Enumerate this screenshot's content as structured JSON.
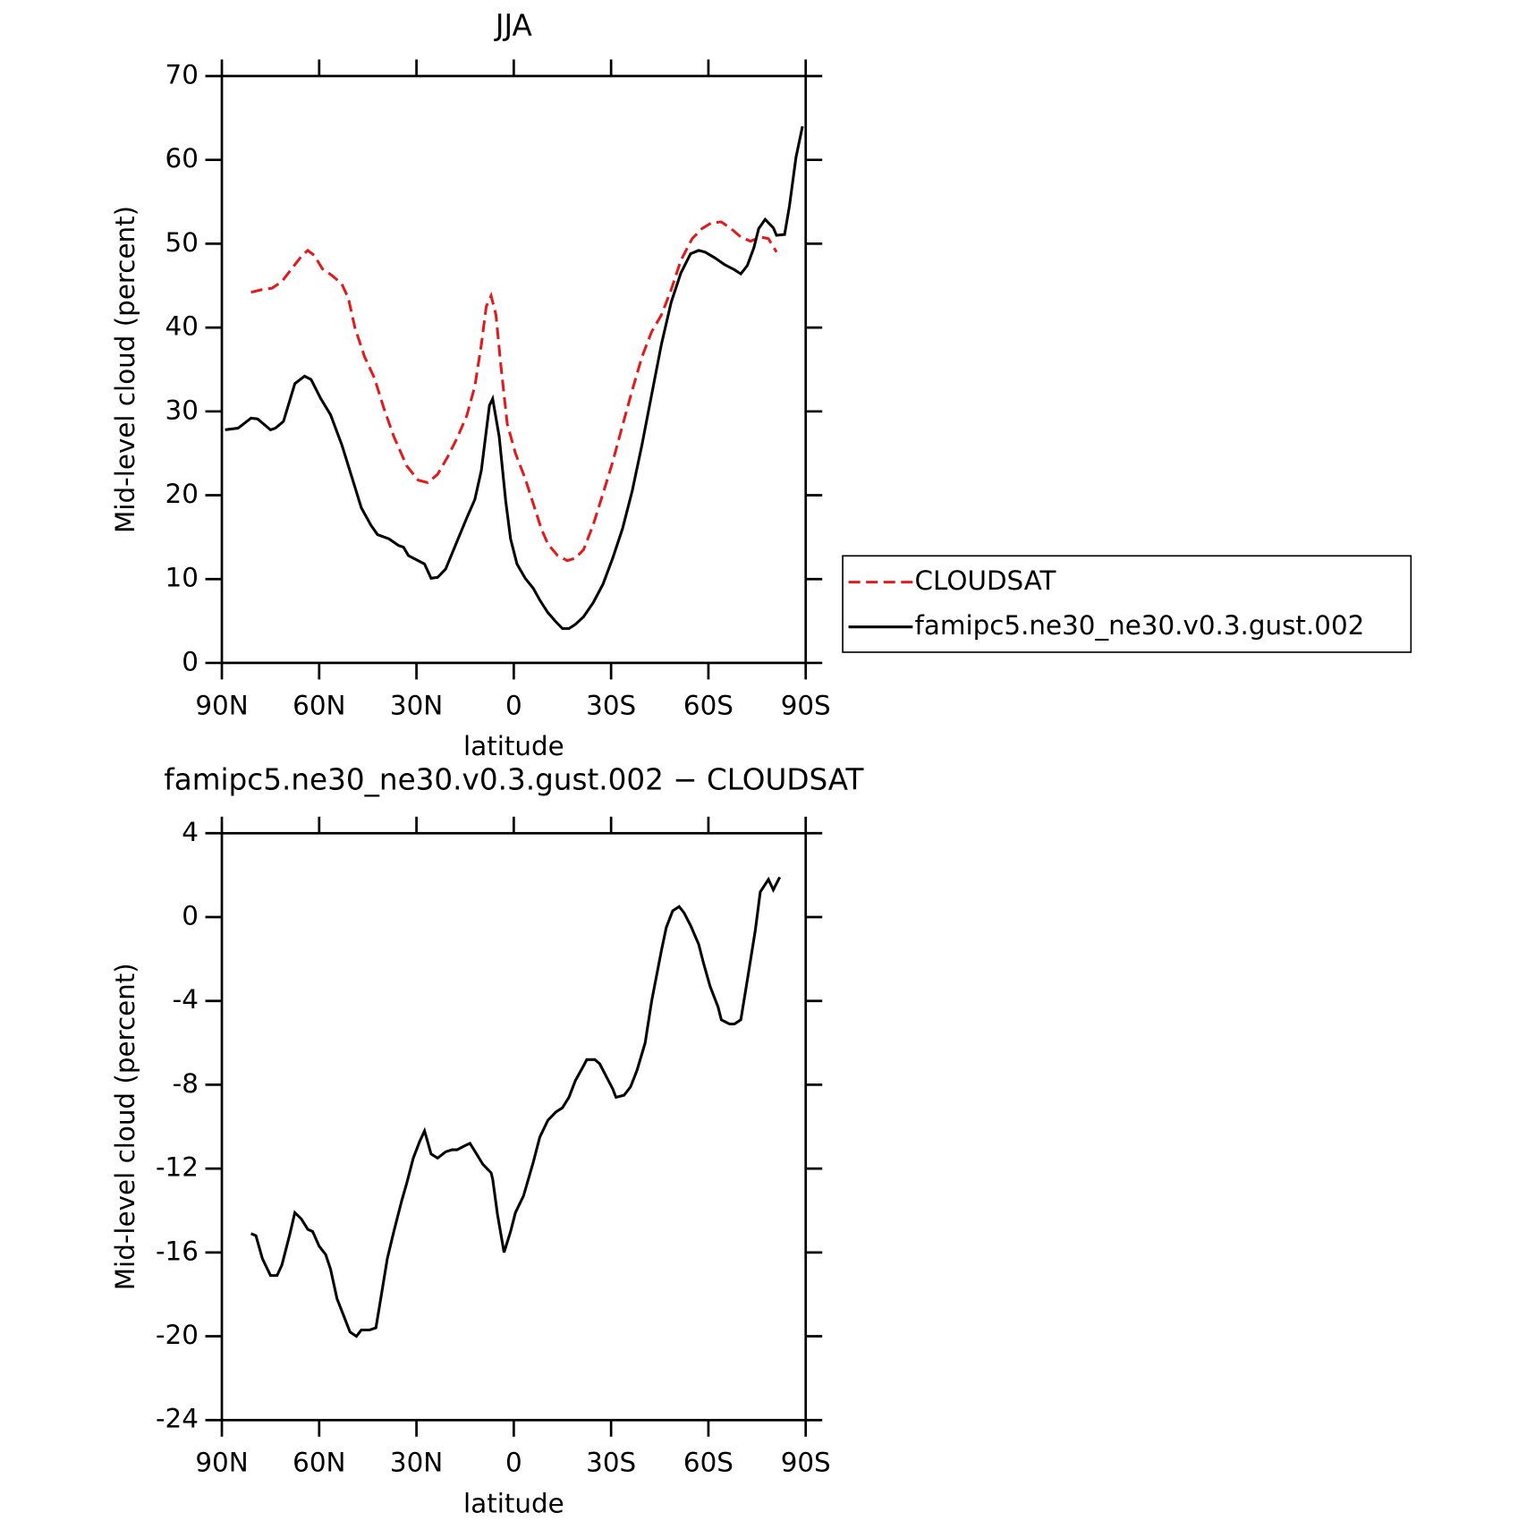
{
  "chart_data": [
    {
      "type": "line",
      "title": "JJA",
      "x_label": "latitude",
      "y_label": "Mid-level cloud (percent)",
      "xlim": [
        90,
        -90
      ],
      "ylim": [
        0,
        70
      ],
      "xticks": [
        {
          "value": 90,
          "label": "90N"
        },
        {
          "value": 60,
          "label": "60N"
        },
        {
          "value": 30,
          "label": "30N"
        },
        0,
        {
          "value": -30,
          "label": "30S"
        },
        {
          "value": -60,
          "label": "60S"
        },
        {
          "value": -90,
          "label": "90S"
        }
      ],
      "yticks": [
        0,
        10,
        20,
        30,
        40,
        50,
        60,
        70
      ],
      "legend": "right",
      "series": [
        {
          "name": "CLOUDSAT",
          "color": "#e31a1c",
          "dashed": true,
          "x": [
            81,
            78,
            74.5,
            71.5,
            68.5,
            65.5,
            63.5,
            61.5,
            59,
            56,
            53,
            51,
            49,
            46,
            43,
            40,
            37,
            33,
            29.5,
            26.5,
            23.5,
            20.5,
            17.5,
            14.5,
            12,
            10,
            8.5,
            7,
            5.5,
            4,
            2,
            -0.5,
            -3.5,
            -6,
            -8.5,
            -10.5,
            -13.5,
            -16.5,
            -19,
            -21.5,
            -24.5,
            -27.5,
            -30.5,
            -33.5,
            -36.5,
            -39.5,
            -42.5,
            -45.5,
            -48.5,
            -51.5,
            -55,
            -58,
            -61,
            -64,
            -67,
            -70,
            -73,
            -76,
            -78.5,
            -81
          ],
          "values": [
            44.2,
            44.5,
            44.7,
            45.5,
            47,
            48.5,
            49.2,
            48.6,
            47,
            46.2,
            45.2,
            43.5,
            40,
            36.5,
            34,
            30.3,
            27,
            23.5,
            21.8,
            21.5,
            22.5,
            24.5,
            26.8,
            29.5,
            33,
            38,
            42.5,
            43.8,
            41.5,
            35.5,
            28.5,
            25,
            22,
            19,
            16,
            14.2,
            12.8,
            12.2,
            12.5,
            13.5,
            16.5,
            20.2,
            24,
            28.3,
            32.5,
            36.5,
            39.5,
            41.5,
            44.5,
            48,
            50.6,
            51.8,
            52.5,
            52.6,
            51.8,
            50.8,
            50.3,
            50.8,
            50.6,
            49
          ]
        },
        {
          "name": "famipc5.ne30_ne30.v0.3.gust.002",
          "color": "#000000",
          "dashed": false,
          "x": [
            89,
            85,
            81,
            79,
            75,
            73.5,
            71,
            67.5,
            64.5,
            62.5,
            59.5,
            56.5,
            53,
            49,
            47,
            44,
            42,
            38.5,
            35.5,
            34,
            32.5,
            29.5,
            27.5,
            25.5,
            23.5,
            21,
            17.5,
            14.5,
            12,
            10,
            7.5,
            6.5,
            4.5,
            2.5,
            1,
            -1,
            -3.5,
            -6,
            -8,
            -10.5,
            -13,
            -15,
            -17,
            -19,
            -21.5,
            -24.5,
            -27.5,
            -30.5,
            -33.5,
            -36.5,
            -39.5,
            -42.5,
            -45.5,
            -48.5,
            -51.5,
            -54.5,
            -57,
            -59,
            -62,
            -65,
            -68,
            -70,
            -72,
            -74,
            -75.5,
            -77.5,
            -80,
            -81,
            -83.5,
            -85,
            -87,
            -89
          ],
          "values": [
            27.8,
            28,
            29.2,
            29.1,
            27.8,
            28,
            28.8,
            33.3,
            34.2,
            33.8,
            31.5,
            29.6,
            26,
            21,
            18.5,
            16.4,
            15.3,
            14.8,
            14,
            13.8,
            12.8,
            12.2,
            11.8,
            10.1,
            10.2,
            11.2,
            14.5,
            17.3,
            19.5,
            23,
            30.7,
            31.5,
            27,
            19.3,
            14.8,
            11.8,
            10.1,
            8.9,
            7.5,
            6,
            4.9,
            4.1,
            4.1,
            4.6,
            5.5,
            7.2,
            9.4,
            12.5,
            16,
            20.5,
            26,
            32,
            38,
            43,
            46.5,
            48.8,
            49.2,
            49,
            48.3,
            47.5,
            46.9,
            46.4,
            47.4,
            49.5,
            51.8,
            52.9,
            51.9,
            51,
            51.1,
            54.5,
            60.3,
            64
          ]
        }
      ]
    },
    {
      "type": "line",
      "title": "famipc5.ne30_ne30.v0.3.gust.002 − CLOUDSAT",
      "x_label": "latitude",
      "y_label": "Mid-level cloud (percent)",
      "xlim": [
        90,
        -90
      ],
      "ylim": [
        -24,
        4
      ],
      "xticks": [
        {
          "value": 90,
          "label": "90N"
        },
        {
          "value": 60,
          "label": "60N"
        },
        {
          "value": 30,
          "label": "30N"
        },
        0,
        {
          "value": -30,
          "label": "30S"
        },
        {
          "value": -60,
          "label": "60S"
        },
        {
          "value": -90,
          "label": "90S"
        }
      ],
      "yticks": [
        -24,
        -20,
        -16,
        -12,
        -8,
        -4,
        0,
        4
      ],
      "color": "#000000",
      "x": [
        81,
        79.5,
        77.5,
        75,
        73,
        71.5,
        69,
        67.5,
        65.5,
        63.5,
        62,
        60,
        58,
        56.5,
        54.5,
        52,
        50.5,
        48.5,
        47,
        44.5,
        42.5,
        41,
        39,
        37,
        34.5,
        33,
        31,
        29,
        27.5,
        25.5,
        23.5,
        21,
        19,
        17.5,
        15,
        13.5,
        11.5,
        9.5,
        7,
        6.5,
        5,
        3,
        1,
        -0.5,
        -3,
        -6,
        -8,
        -10.5,
        -13,
        -15,
        -17,
        -19,
        -21.5,
        -22.5,
        -25,
        -26.5,
        -28.5,
        -30.5,
        -31.5,
        -34,
        -36,
        -38,
        -40.5,
        -42.5,
        -45.5,
        -47,
        -49,
        -51,
        -52.5,
        -54.5,
        -57,
        -58.5,
        -60.5,
        -63,
        -64,
        -66.5,
        -68,
        -70,
        -72,
        -74.5,
        -76,
        -78.5,
        -80,
        -82
      ],
      "values": [
        -15.1,
        -15.2,
        -16.3,
        -17.1,
        -17.1,
        -16.6,
        -15.1,
        -14.1,
        -14.4,
        -14.9,
        -15,
        -15.7,
        -16.1,
        -16.8,
        -18.2,
        -19.2,
        -19.8,
        -20,
        -19.7,
        -19.7,
        -19.6,
        -18.2,
        -16.3,
        -15,
        -13.5,
        -12.7,
        -11.5,
        -10.7,
        -10.2,
        -11.3,
        -11.5,
        -11.2,
        -11.1,
        -11.1,
        -10.9,
        -10.8,
        -11.3,
        -11.8,
        -12.2,
        -12.5,
        -14.2,
        -16,
        -15,
        -14.1,
        -13.3,
        -11.7,
        -10.5,
        -9.7,
        -9.3,
        -9.1,
        -8.6,
        -7.8,
        -7.1,
        -6.8,
        -6.8,
        -7,
        -7.6,
        -8.2,
        -8.6,
        -8.5,
        -8.1,
        -7.3,
        -6,
        -4,
        -1.6,
        -0.5,
        0.3,
        0.5,
        0.2,
        -0.4,
        -1.3,
        -2.2,
        -3.3,
        -4.3,
        -4.9,
        -5.1,
        -5.1,
        -4.9,
        -3,
        -0.6,
        1.2,
        1.8,
        1.3,
        1.9
      ]
    }
  ]
}
